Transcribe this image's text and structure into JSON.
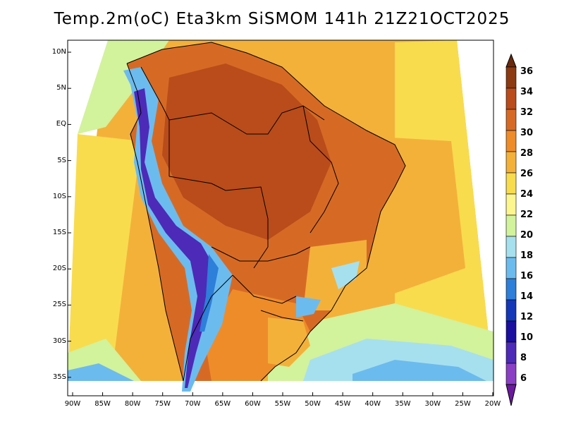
{
  "title": "Temp.2m(oC) Eta3km SiSMOM 141h 21Z21OCT2025",
  "lat_labels": [
    "10N",
    "5N",
    "EQ",
    "5S",
    "10S",
    "15S",
    "20S",
    "25S",
    "30S",
    "35S"
  ],
  "lon_labels": [
    "90W",
    "85W",
    "80W",
    "75W",
    "70W",
    "65W",
    "60W",
    "55W",
    "50W",
    "45W",
    "40W",
    "35W",
    "30W",
    "25W",
    "20W"
  ],
  "colorbar": {
    "labels": [
      "36",
      "34",
      "32",
      "30",
      "28",
      "26",
      "24",
      "22",
      "20",
      "18",
      "16",
      "14",
      "12",
      "10",
      "8",
      "6"
    ],
    "colors": [
      "#6b2a0d",
      "#8b3a12",
      "#b94c1a",
      "#d66a25",
      "#ee8c2a",
      "#f3b13a",
      "#f8dc4e",
      "#fdf58e",
      "#d2f29c",
      "#a6e0ee",
      "#6cbbee",
      "#2d7fd9",
      "#1438b8",
      "#1a0f9e",
      "#4d2ab8",
      "#8a3fc4",
      "#6b1a9e"
    ]
  }
}
